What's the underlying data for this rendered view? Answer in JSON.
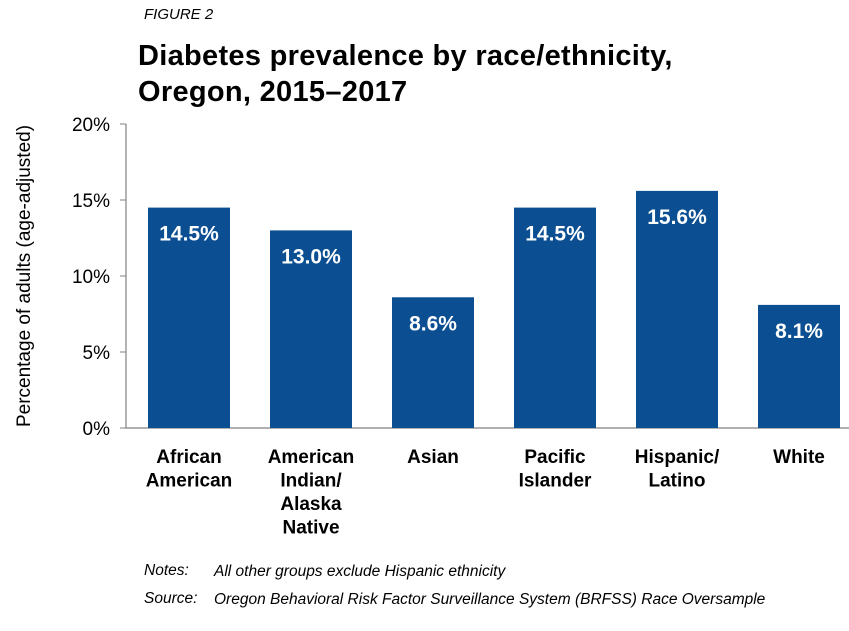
{
  "figure_label": "FIGURE 2",
  "title_line1": "Diabetes prevalence by race/ethnicity,",
  "title_line2": "Oregon, 2015–2017",
  "notes": {
    "notes_label": "Notes:",
    "notes_text": "All other groups exclude Hispanic ethnicity",
    "source_label": "Source:",
    "source_text": "Oregon Behavioral Risk Factor Surveillance System (BRFSS) Race Oversample"
  },
  "colors": {
    "bar": "#0b4f92",
    "axis": "#808080",
    "bar_label": "#ffffff"
  },
  "chart_data": {
    "type": "bar",
    "title": "Diabetes prevalence by race/ethnicity, Oregon, 2015–2017",
    "xlabel": "",
    "ylabel": "Percentage of adults (age-adjusted)",
    "ylim": [
      0,
      20
    ],
    "yticks": [
      0,
      5,
      10,
      15,
      20
    ],
    "ytick_format": "%",
    "grid": false,
    "categories": [
      [
        "African",
        "American"
      ],
      [
        "American",
        "Indian/",
        "Alaska",
        "Native"
      ],
      [
        "Asian"
      ],
      [
        "Pacific",
        "Islander"
      ],
      [
        "Hispanic/",
        "Latino"
      ],
      [
        "White"
      ]
    ],
    "values": [
      14.5,
      13.0,
      8.6,
      14.5,
      15.6,
      8.1
    ],
    "data_labels": [
      "14.5%",
      "13.0%",
      "8.6%",
      "14.5%",
      "15.6%",
      "8.1%"
    ]
  }
}
